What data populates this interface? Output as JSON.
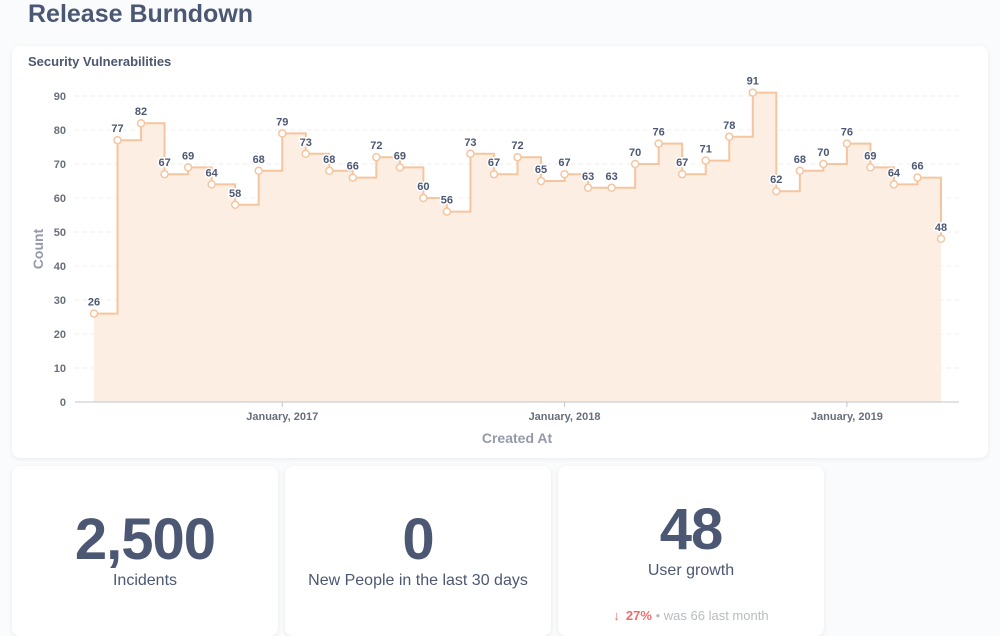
{
  "page": {
    "title": "Release Burndown"
  },
  "chart_card": {
    "title": "Security Vulnerabilities"
  },
  "chart_data": {
    "type": "area",
    "title": "Security Vulnerabilities",
    "xlabel": "Created At",
    "ylabel": "Count",
    "step": true,
    "values": [
      26,
      77,
      82,
      67,
      69,
      64,
      58,
      68,
      79,
      73,
      68,
      66,
      72,
      69,
      60,
      56,
      73,
      67,
      72,
      65,
      67,
      63,
      63,
      70,
      76,
      67,
      71,
      78,
      91,
      62,
      68,
      70,
      76,
      69,
      64,
      66,
      48
    ],
    "x_tick_labels": [
      "January, 2017",
      "January, 2018",
      "January, 2019"
    ],
    "x_tick_index": [
      8,
      20,
      32
    ],
    "y_ticks": [
      0,
      10,
      20,
      30,
      40,
      50,
      60,
      70,
      80,
      90
    ],
    "ylim": [
      0,
      90
    ],
    "color": "#f5c59f",
    "fill": "#fdeee3",
    "grid": true
  },
  "scalars": [
    {
      "value": "2,500",
      "label": "Incidents"
    },
    {
      "value": "0",
      "label": "New People in the last 30 days"
    },
    {
      "value": "48",
      "label": "User growth",
      "trend_arrow": "↓",
      "trend_pct": "27%",
      "trend_sep": "•",
      "trend_was": "was",
      "trend_prev_value": "66",
      "trend_period": "last month"
    }
  ]
}
